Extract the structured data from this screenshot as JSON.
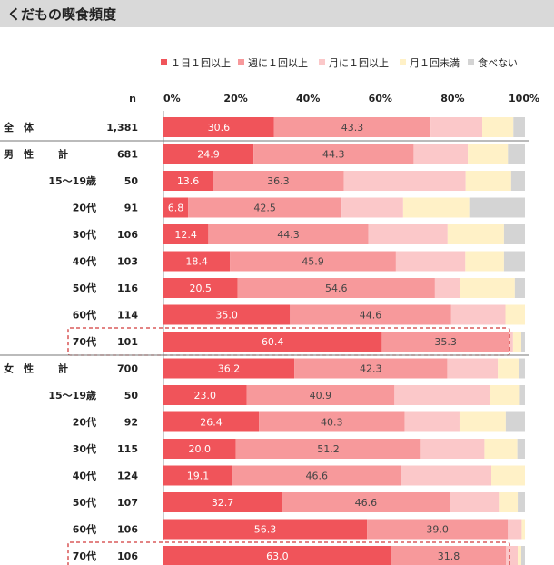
{
  "title": "くだもの喫食頻度",
  "chart_data": {
    "type": "bar",
    "orientation": "horizontal-stacked-percent",
    "title": "くだもの喫食頻度",
    "n_header": "n",
    "xlim": [
      0,
      100
    ],
    "x_ticks": [
      "0%",
      "20%",
      "40%",
      "60%",
      "80%",
      "100%"
    ],
    "legend_position": "top",
    "series_names": [
      "１日１回以上",
      "週に１回以上",
      "月に１回以上",
      "月１回未満",
      "食べない"
    ],
    "colors": [
      "#f0545a",
      "#f7999b",
      "#fbc8c9",
      "#fff1c7",
      "#d4d4d4"
    ],
    "rows": [
      {
        "group": "全　体",
        "label": "",
        "n": "1,381",
        "values": [
          30.6,
          43.3,
          14.3,
          8.6,
          3.2
        ],
        "highlight": false
      },
      {
        "group": "男　性",
        "label": "計",
        "n": "681",
        "values": [
          24.9,
          44.3,
          15.0,
          11.1,
          4.7
        ],
        "highlight": false
      },
      {
        "group": "",
        "label": "15～19歳",
        "n": "50",
        "values": [
          13.6,
          36.3,
          33.7,
          12.6,
          3.8
        ],
        "highlight": false
      },
      {
        "group": "",
        "label": "20代",
        "n": "91",
        "values": [
          6.8,
          42.5,
          17.0,
          18.3,
          15.4
        ],
        "highlight": false
      },
      {
        "group": "",
        "label": "30代",
        "n": "106",
        "values": [
          12.4,
          44.3,
          21.9,
          15.6,
          5.8
        ],
        "highlight": false
      },
      {
        "group": "",
        "label": "40代",
        "n": "103",
        "values": [
          18.4,
          45.9,
          19.2,
          10.7,
          5.8
        ],
        "highlight": false
      },
      {
        "group": "",
        "label": "50代",
        "n": "116",
        "values": [
          20.5,
          54.6,
          6.9,
          15.2,
          2.8
        ],
        "highlight": false
      },
      {
        "group": "",
        "label": "60代",
        "n": "114",
        "values": [
          35.0,
          44.6,
          15.0,
          5.4,
          0.0
        ],
        "highlight": false
      },
      {
        "group": "",
        "label": "70代",
        "n": "101",
        "values": [
          60.4,
          35.3,
          1.0,
          2.3,
          1.0
        ],
        "highlight": true
      },
      {
        "group": "女　性",
        "label": "計",
        "n": "700",
        "values": [
          36.2,
          42.3,
          14.0,
          6.0,
          1.5
        ],
        "highlight": false
      },
      {
        "group": "",
        "label": "15～19歳",
        "n": "50",
        "values": [
          23.0,
          40.9,
          26.4,
          8.3,
          1.4
        ],
        "highlight": false
      },
      {
        "group": "",
        "label": "20代",
        "n": "92",
        "values": [
          26.4,
          40.3,
          15.2,
          12.8,
          5.3
        ],
        "highlight": false
      },
      {
        "group": "",
        "label": "30代",
        "n": "115",
        "values": [
          20.0,
          51.2,
          17.6,
          9.1,
          2.1
        ],
        "highlight": false
      },
      {
        "group": "",
        "label": "40代",
        "n": "124",
        "values": [
          19.1,
          46.6,
          25.0,
          9.3,
          0.0
        ],
        "highlight": false
      },
      {
        "group": "",
        "label": "50代",
        "n": "107",
        "values": [
          32.7,
          46.6,
          13.5,
          5.2,
          2.0
        ],
        "highlight": false
      },
      {
        "group": "",
        "label": "60代",
        "n": "106",
        "values": [
          56.3,
          39.0,
          3.8,
          0.9,
          0.0
        ],
        "highlight": false
      },
      {
        "group": "",
        "label": "70代",
        "n": "106",
        "values": [
          63.0,
          31.8,
          3.2,
          1.0,
          1.0
        ],
        "highlight": true
      }
    ]
  }
}
